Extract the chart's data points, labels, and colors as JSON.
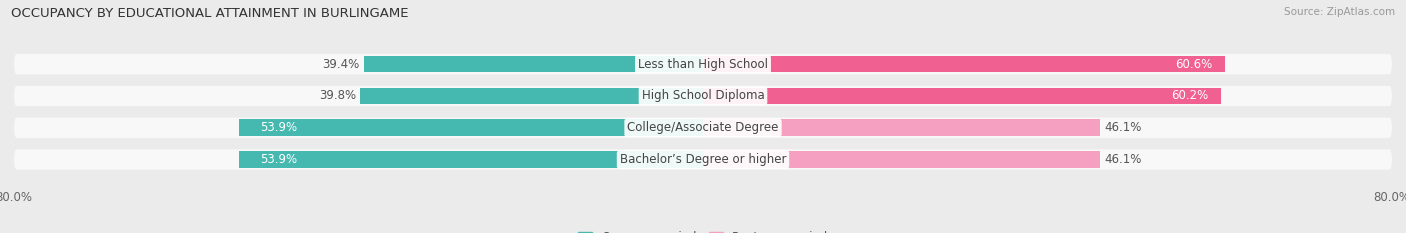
{
  "title": "OCCUPANCY BY EDUCATIONAL ATTAINMENT IN BURLINGAME",
  "source": "Source: ZipAtlas.com",
  "categories": [
    "Less than High School",
    "High School Diploma",
    "College/Associate Degree",
    "Bachelor’s Degree or higher"
  ],
  "owner_values": [
    39.4,
    39.8,
    53.9,
    53.9
  ],
  "renter_values": [
    60.6,
    60.2,
    46.1,
    46.1
  ],
  "owner_color": "#45b8b0",
  "renter_color_strong": "#f06090",
  "renter_color_light": "#f5a0c0",
  "bar_height": 0.52,
  "x_max": 80.0,
  "background_color": "#ebebeb",
  "row_bg_color": "#f8f8f8",
  "title_fontsize": 9.5,
  "source_fontsize": 7.5,
  "label_fontsize": 8.5,
  "tick_fontsize": 8.5,
  "legend_fontsize": 8.5,
  "owner_label_white_threshold": 45,
  "renter_label_white_threshold": 50
}
